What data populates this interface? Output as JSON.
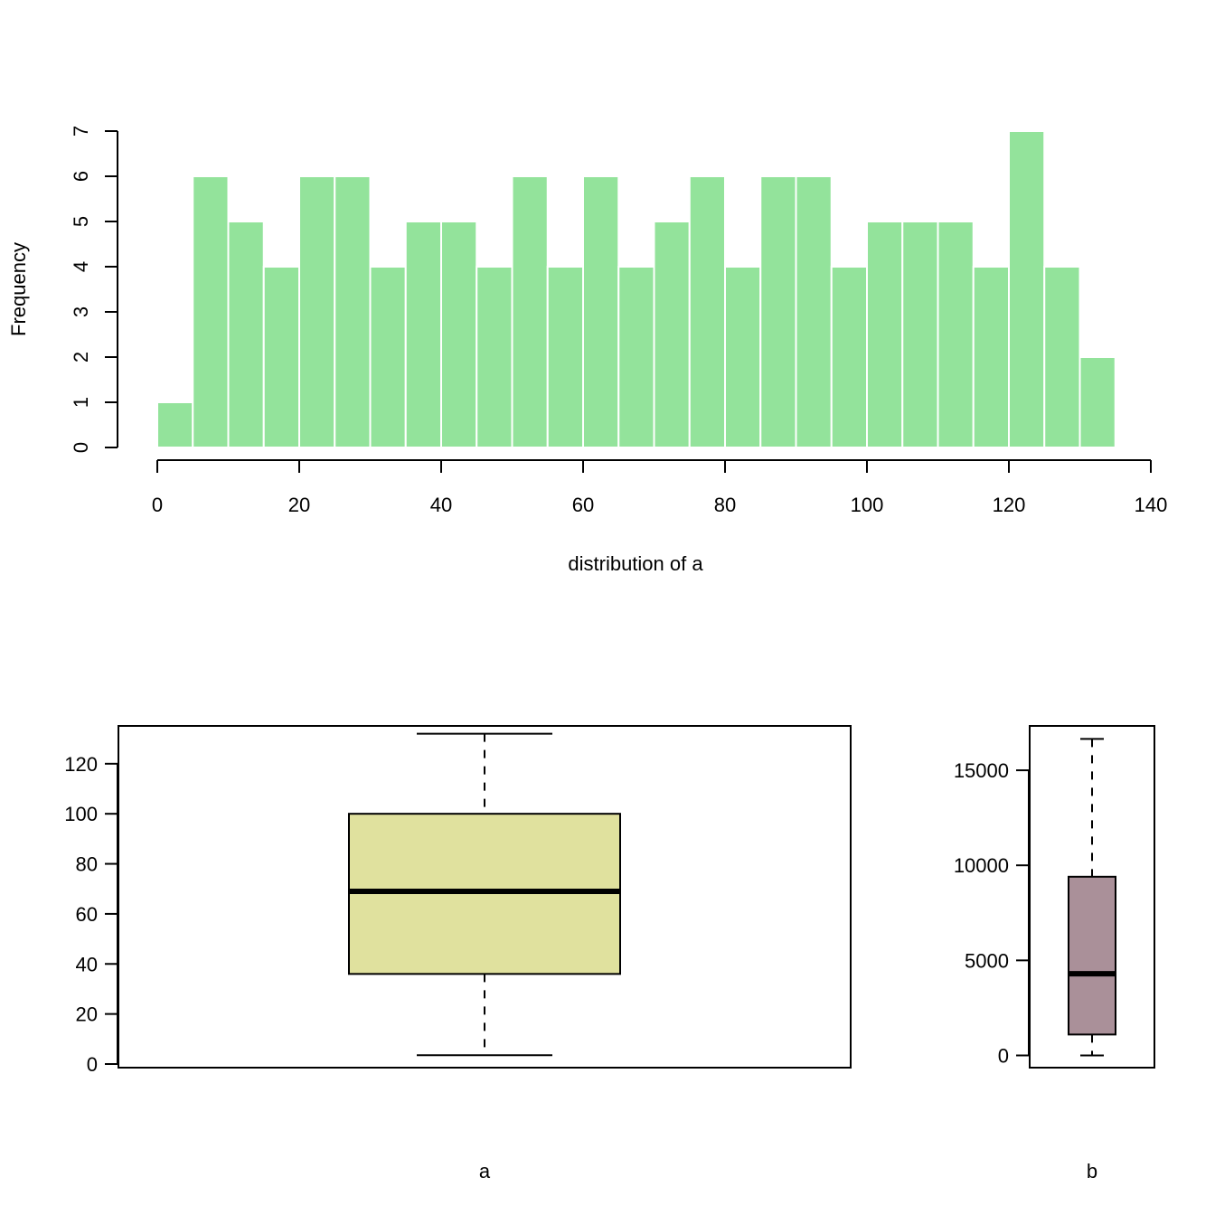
{
  "chart_data": [
    {
      "type": "bar",
      "subtype": "histogram",
      "xlabel": "distribution of a",
      "ylabel": "Frequency",
      "xlim": [
        0,
        140
      ],
      "ylim": [
        0,
        7
      ],
      "bin_width": 5,
      "bins": [
        {
          "from": 0,
          "to": 5,
          "count": 1
        },
        {
          "from": 5,
          "to": 10,
          "count": 6
        },
        {
          "from": 10,
          "to": 15,
          "count": 5
        },
        {
          "from": 15,
          "to": 20,
          "count": 4
        },
        {
          "from": 20,
          "to": 25,
          "count": 6
        },
        {
          "from": 25,
          "to": 30,
          "count": 6
        },
        {
          "from": 30,
          "to": 35,
          "count": 4
        },
        {
          "from": 35,
          "to": 40,
          "count": 5
        },
        {
          "from": 40,
          "to": 45,
          "count": 5
        },
        {
          "from": 45,
          "to": 50,
          "count": 4
        },
        {
          "from": 50,
          "to": 55,
          "count": 6
        },
        {
          "from": 55,
          "to": 60,
          "count": 4
        },
        {
          "from": 60,
          "to": 65,
          "count": 6
        },
        {
          "from": 65,
          "to": 70,
          "count": 4
        },
        {
          "from": 70,
          "to": 75,
          "count": 5
        },
        {
          "from": 75,
          "to": 80,
          "count": 6
        },
        {
          "from": 80,
          "to": 85,
          "count": 4
        },
        {
          "from": 85,
          "to": 90,
          "count": 6
        },
        {
          "from": 90,
          "to": 95,
          "count": 6
        },
        {
          "from": 95,
          "to": 100,
          "count": 4
        },
        {
          "from": 100,
          "to": 105,
          "count": 5
        },
        {
          "from": 105,
          "to": 110,
          "count": 5
        },
        {
          "from": 110,
          "to": 115,
          "count": 5
        },
        {
          "from": 115,
          "to": 120,
          "count": 4
        },
        {
          "from": 120,
          "to": 125,
          "count": 7
        },
        {
          "from": 125,
          "to": 130,
          "count": 4
        },
        {
          "from": 130,
          "to": 135,
          "count": 2
        }
      ],
      "xticks": [
        "0",
        "20",
        "40",
        "60",
        "80",
        "100",
        "120",
        "140"
      ],
      "yticks": [
        "0",
        "1",
        "2",
        "3",
        "4",
        "5",
        "6",
        "7"
      ],
      "bar_color": "#93e39b",
      "bar_border": "#ffffff"
    },
    {
      "type": "boxplot",
      "xlabel": "a",
      "ylim": [
        0,
        138
      ],
      "stats": {
        "min": 3.5,
        "q1": 36,
        "median": 69,
        "q3": 100,
        "max": 132
      },
      "yticks": [
        "0",
        "20",
        "40",
        "60",
        "80",
        "100",
        "120"
      ],
      "box_color": "#e0e19e"
    },
    {
      "type": "boxplot",
      "xlabel": "b",
      "ylim": [
        -500,
        17000
      ],
      "stats": {
        "min": 0,
        "q1": 1100,
        "median": 4300,
        "q3": 9400,
        "max": 16650
      },
      "yticks": [
        "0",
        "5000",
        "10000",
        "15000"
      ],
      "box_color": "#aa9099"
    }
  ]
}
